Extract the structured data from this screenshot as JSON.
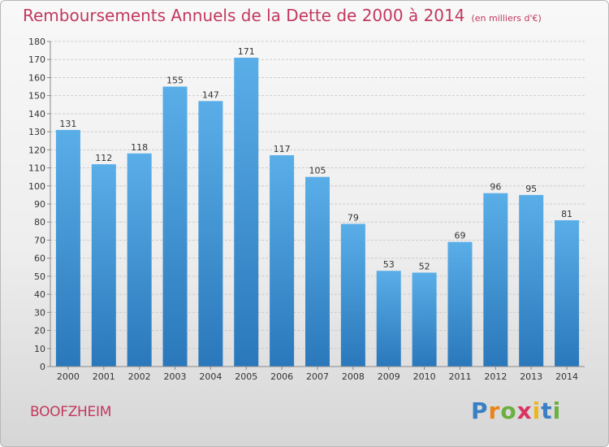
{
  "colors": {
    "title": "#c2385f",
    "bar_top": "#5aaee8",
    "bar_bottom": "#2a78bb",
    "grid": "#cccccc",
    "axis_text": "#333333"
  },
  "chart_data": {
    "type": "bar",
    "title": "Remboursements Annuels de la Dette de 2000 à 2014",
    "unit": "(en milliers d'€)",
    "xlabel": "",
    "ylabel": "",
    "categories": [
      "2000",
      "2001",
      "2002",
      "2003",
      "2004",
      "2005",
      "2006",
      "2007",
      "2008",
      "2009",
      "2010",
      "2011",
      "2012",
      "2013",
      "2014"
    ],
    "values": [
      131,
      112,
      118,
      155,
      147,
      171,
      117,
      105,
      79,
      53,
      52,
      69,
      96,
      95,
      81
    ],
    "ylim": [
      0,
      180
    ],
    "yticks": [
      0,
      10,
      20,
      30,
      40,
      50,
      60,
      70,
      80,
      90,
      100,
      110,
      120,
      130,
      140,
      150,
      160,
      170,
      180
    ],
    "grid": true
  },
  "footer": {
    "city": "BOOFZHEIM",
    "logo_letters": [
      "P",
      "r",
      "o",
      "x",
      "i",
      "t",
      "i"
    ],
    "logo_colors": [
      "#3a7fc4",
      "#e8841a",
      "#6ab03f",
      "#d8345f",
      "#e8b81a",
      "#3a7fc4",
      "#6ab03f"
    ]
  }
}
